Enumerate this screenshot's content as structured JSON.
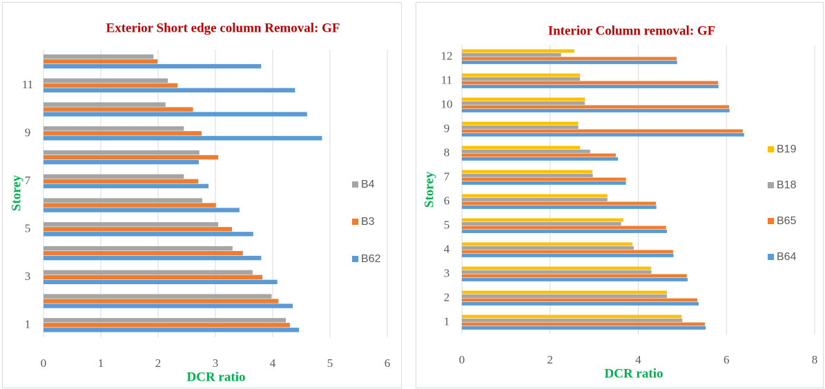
{
  "chart_data": [
    {
      "type": "bar",
      "orientation": "horizontal",
      "title": "Exterior Short edge column Removal: GF",
      "xlabel": "DCR ratio",
      "ylabel": "Storey",
      "categories": [
        "1",
        null,
        "3",
        null,
        "5",
        null,
        "7",
        null,
        "9",
        null,
        "11",
        null
      ],
      "series": [
        {
          "name": "B4",
          "color": "#a5a5a5",
          "values": [
            4.23,
            3.98,
            3.65,
            3.3,
            3.05,
            2.77,
            2.45,
            2.72,
            2.45,
            2.13,
            2.17,
            1.92
          ]
        },
        {
          "name": "B3",
          "color": "#ed7d31",
          "values": [
            4.3,
            4.1,
            3.82,
            3.48,
            3.29,
            3.01,
            2.7,
            3.05,
            2.76,
            2.61,
            2.34,
            1.99
          ]
        },
        {
          "name": "B62",
          "color": "#5b9bd5",
          "values": [
            4.46,
            4.35,
            4.08,
            3.8,
            3.66,
            3.42,
            2.88,
            2.71,
            4.86,
            4.6,
            4.39,
            3.8
          ]
        }
      ],
      "xlim": [
        0,
        6
      ],
      "xticks": [
        0,
        1,
        2,
        3,
        4,
        5,
        6
      ],
      "grid": true,
      "legend": "right"
    },
    {
      "type": "bar",
      "orientation": "horizontal",
      "title": "Interior  Column removal: GF",
      "xlabel": "DCR ratio",
      "ylabel": "Storey",
      "categories": [
        "1",
        "2",
        "3",
        "4",
        "5",
        "6",
        "7",
        "8",
        "9",
        "10",
        "11",
        "12"
      ],
      "series": [
        {
          "name": "B19",
          "color": "#ffc000",
          "values": [
            4.98,
            4.65,
            4.29,
            3.87,
            3.66,
            3.3,
            2.96,
            2.68,
            2.64,
            2.79,
            2.68,
            2.55
          ]
        },
        {
          "name": "B18",
          "color": "#a5a5a5",
          "values": [
            5.0,
            4.65,
            4.3,
            3.9,
            3.61,
            3.3,
            2.97,
            2.91,
            2.64,
            2.79,
            2.68,
            2.25
          ]
        },
        {
          "name": "B65",
          "color": "#ed7d31",
          "values": [
            5.51,
            5.34,
            5.1,
            4.79,
            4.63,
            4.4,
            3.72,
            3.49,
            6.37,
            6.06,
            5.81,
            4.87
          ]
        },
        {
          "name": "B64",
          "color": "#5b9bd5",
          "values": [
            5.53,
            5.37,
            5.12,
            4.8,
            4.65,
            4.41,
            3.72,
            3.54,
            6.4,
            6.07,
            5.82,
            4.88
          ]
        }
      ],
      "xlim": [
        0,
        8
      ],
      "xticks": [
        0,
        2,
        4,
        6,
        8
      ],
      "grid": true,
      "legend": "right"
    }
  ]
}
